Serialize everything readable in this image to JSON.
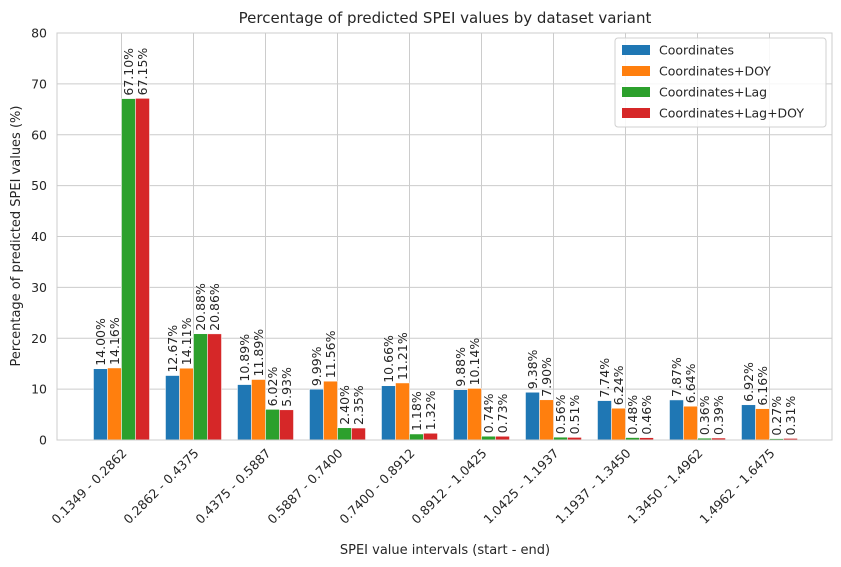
{
  "chart_data": {
    "type": "bar",
    "title": "Percentage of predicted SPEI values by dataset variant",
    "xlabel": "SPEI value intervals (start - end)",
    "ylabel": "Percentage of predicted SPEI values (%)",
    "ylim": [
      0,
      80
    ],
    "yticks": [
      "0",
      "10",
      "20",
      "30",
      "40",
      "50",
      "60",
      "70",
      "80"
    ],
    "grid": true,
    "legend_position": "top-right",
    "categories": [
      "0.1349 - 0.2862",
      "0.2862 - 0.4375",
      "0.4375 - 0.5887",
      "0.5887 - 0.7400",
      "0.7400 - 0.8912",
      "0.8912 - 1.0425",
      "1.0425 - 1.1937",
      "1.1937 - 1.3450",
      "1.3450 - 1.4962",
      "1.4962 - 1.6475"
    ],
    "series": [
      {
        "name": "Coordinates",
        "color": "#1f77b4",
        "values": [
          14.0,
          12.67,
          10.89,
          9.99,
          10.66,
          9.88,
          9.38,
          7.74,
          7.87,
          6.92
        ],
        "labels": [
          "14.00%",
          "12.67%",
          "10.89%",
          "9.99%",
          "10.66%",
          "9.88%",
          "9.38%",
          "7.74%",
          "7.87%",
          "6.92%"
        ]
      },
      {
        "name": "Coordinates+DOY",
        "color": "#ff7f0e",
        "values": [
          14.16,
          14.11,
          11.89,
          11.56,
          11.21,
          10.14,
          7.9,
          6.24,
          6.64,
          6.16
        ],
        "labels": [
          "14.16%",
          "14.11%",
          "11.89%",
          "11.56%",
          "11.21%",
          "10.14%",
          "7.90%",
          "6.24%",
          "6.64%",
          "6.16%"
        ]
      },
      {
        "name": "Coordinates+Lag",
        "color": "#2ca02c",
        "values": [
          67.1,
          20.88,
          6.02,
          2.4,
          1.18,
          0.74,
          0.56,
          0.48,
          0.36,
          0.27
        ],
        "labels": [
          "67.10%",
          "20.88%",
          "6.02%",
          "2.40%",
          "1.18%",
          "0.74%",
          "0.56%",
          "0.48%",
          "0.36%",
          "0.27%"
        ]
      },
      {
        "name": "Coordinates+Lag+DOY",
        "color": "#d62728",
        "values": [
          67.15,
          20.86,
          5.93,
          2.35,
          1.32,
          0.73,
          0.51,
          0.46,
          0.39,
          0.31
        ],
        "labels": [
          "67.15%",
          "20.86%",
          "5.93%",
          "2.35%",
          "1.32%",
          "0.73%",
          "0.51%",
          "0.46%",
          "0.39%",
          "0.31%"
        ]
      }
    ]
  }
}
